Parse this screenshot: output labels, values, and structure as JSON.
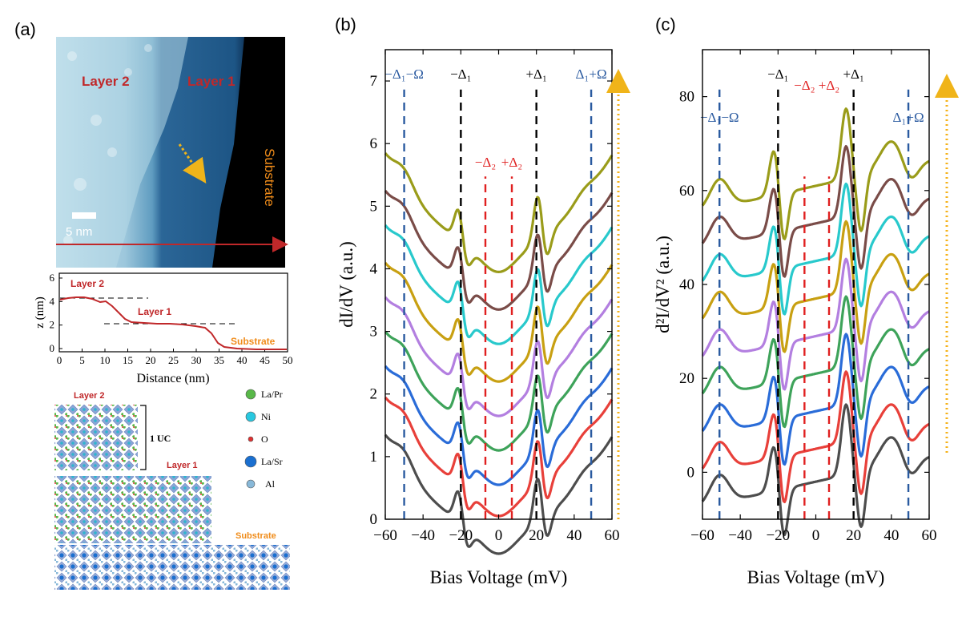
{
  "panels": {
    "a": "(a)",
    "b": "(b)",
    "c": "(c)"
  },
  "stm": {
    "labels": {
      "layer2": "Layer 2",
      "layer1": "Layer 1",
      "substrate": "Substrate",
      "scale": "5 nm"
    },
    "colors": {
      "label": "#c0282a",
      "substrate": "#f08c1a",
      "arrow": "#e8a317",
      "line": "#c0282a"
    }
  },
  "profile": {
    "ylabel": "z (nm)",
    "xlabel": "Distance (nm)",
    "labels": {
      "layer2": "Layer 2",
      "layer1": "Layer 1",
      "substrate": "Substrate"
    },
    "xticks": [
      "0",
      "5",
      "10",
      "15",
      "20",
      "25",
      "30",
      "35",
      "40",
      "45",
      "50"
    ],
    "yticks": [
      "0",
      "2",
      "4",
      "6"
    ]
  },
  "structure": {
    "labels": {
      "layer2": "Layer 2",
      "layer1": "Layer 1",
      "substrate": "Substrate",
      "uc": "1 UC"
    },
    "legend": [
      "La/Pr",
      "Ni",
      "O",
      "La/Sr",
      "Al"
    ],
    "legend_colors": [
      "#58b848",
      "#28c8e0",
      "#e03030",
      "#1a6fd0",
      "#88b8d8"
    ]
  },
  "chart_data": [
    {
      "id": "b",
      "type": "line",
      "xlabel": "Bias Voltage (mV)",
      "ylabel": "dI/dV (a.u.)",
      "xlim": [
        -60,
        60
      ],
      "ylim": [
        0,
        7.5
      ],
      "xticks": [
        "−60",
        "−40",
        "−20",
        "0",
        "20",
        "40",
        "60"
      ],
      "yticks": [
        "0",
        "1",
        "2",
        "3",
        "4",
        "5",
        "6",
        "7"
      ],
      "colors": [
        "#4d4d4d",
        "#e8403a",
        "#2a6cd8",
        "#3ea35a",
        "#b37fe0",
        "#c8a012",
        "#28c9cc",
        "#7a4c48",
        "#9a9c1a"
      ],
      "offsets": [
        0.35,
        0.95,
        1.45,
        2.0,
        2.55,
        3.1,
        3.7,
        4.25,
        4.85
      ],
      "markers": [
        {
          "x": -50,
          "label": "−Δ₁−Ω",
          "color": "#2a5aa0"
        },
        {
          "x": -20,
          "label": "−Δ₁",
          "color": "#000000"
        },
        {
          "x": -7,
          "label": "−Δ₂",
          "color": "#e02020"
        },
        {
          "x": 7,
          "label": "+Δ₂",
          "color": "#e02020"
        },
        {
          "x": 20,
          "label": "+Δ₁",
          "color": "#000000"
        },
        {
          "x": 49,
          "label": "Δ₁+Ω",
          "color": "#2a5aa0"
        }
      ]
    },
    {
      "id": "c",
      "type": "line",
      "xlabel": "Bias Voltage (mV)",
      "ylabel": "d²I/dV² (a.u.)",
      "xlim": [
        -60,
        60
      ],
      "ylim": [
        -10,
        90
      ],
      "xticks": [
        "−60",
        "−40",
        "−20",
        "0",
        "20",
        "40",
        "60"
      ],
      "yticks": [
        "0",
        "20",
        "40",
        "60",
        "80"
      ],
      "colors": [
        "#4d4d4d",
        "#e8403a",
        "#2a6cd8",
        "#3ea35a",
        "#b37fe0",
        "#c8a012",
        "#28c9cc",
        "#7a4c48",
        "#9a9c1a"
      ],
      "offsets": [
        -2,
        5,
        13,
        21,
        29,
        37,
        45,
        53,
        61
      ],
      "markers": [
        {
          "x": -51,
          "label": "−Δ₁−Ω",
          "color": "#2a5aa0"
        },
        {
          "x": -20,
          "label": "−Δ₁",
          "color": "#000000"
        },
        {
          "x": -6,
          "label": "−Δ₂",
          "color": "#e02020"
        },
        {
          "x": 7,
          "label": "+Δ₂",
          "color": "#e02020"
        },
        {
          "x": 20,
          "label": "+Δ₁",
          "color": "#000000"
        },
        {
          "x": 49,
          "label": "Δ₁+Ω",
          "color": "#2a5aa0"
        }
      ]
    }
  ]
}
